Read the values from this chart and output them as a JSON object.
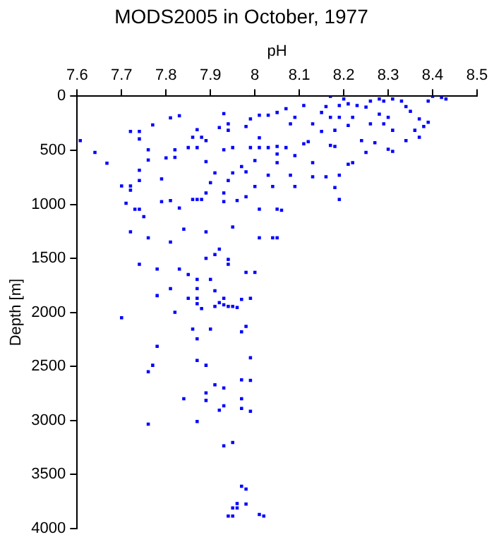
{
  "chart_data": {
    "type": "scatter",
    "title": "MODS2005 in October, 1977",
    "xlabel": "pH",
    "ylabel": "Depth [m]",
    "x": [
      7.607,
      7.64,
      7.667,
      7.72,
      7.74,
      7.74,
      7.77,
      7.81,
      7.83,
      7.76,
      7.76,
      7.8,
      7.82,
      7.82,
      7.85,
      7.87,
      7.86,
      7.88,
      7.87,
      7.89,
      7.89,
      7.93,
      7.92,
      7.94,
      7.94,
      7.93,
      7.95,
      7.98,
      7.99,
      8.01,
      7.99,
      8.01,
      8.01,
      8.03,
      8.05,
      8.05,
      8.05,
      8.07,
      8.09,
      8.08,
      8.03,
      8.05,
      8.07,
      8.09,
      8.11,
      8.12,
      8.13,
      8.13,
      8.11,
      8.15,
      8.16,
      8.17,
      8.17,
      8.15,
      8.17,
      8.18,
      8.18,
      8.19,
      8.2,
      8.21,
      8.22,
      8.21,
      8.22,
      8.23,
      8.24,
      8.25,
      8.26,
      8.26,
      8.27,
      8.28,
      8.29,
      8.29,
      8.3,
      8.31,
      8.3,
      8.31,
      8.31,
      8.34,
      8.34,
      8.36,
      8.37,
      8.37,
      8.38,
      8.39,
      8.39,
      8.4,
      8.42,
      8.43,
      8.35,
      8.33,
      8.28,
      8.25,
      8.21,
      8.19,
      7.7,
      7.72,
      7.72,
      7.74,
      7.74,
      7.79,
      7.71,
      7.73,
      7.74,
      7.75,
      7.79,
      7.81,
      7.83,
      7.86,
      7.87,
      7.88,
      7.89,
      7.9,
      7.91,
      7.93,
      7.93,
      7.94,
      7.95,
      7.96,
      7.97,
      7.98,
      7.98,
      8.0,
      8.0,
      8.01,
      8.03,
      8.04,
      8.05,
      8.06,
      8.08,
      8.09,
      8.13,
      8.16,
      8.18,
      8.19,
      8.19,
      7.72,
      7.76,
      7.81,
      7.84,
      7.89,
      7.95,
      8.01,
      8.04,
      8.05,
      7.74,
      7.78,
      7.83,
      7.85,
      7.87,
      7.9,
      7.89,
      7.91,
      7.92,
      7.94,
      7.94,
      7.98,
      8.0,
      7.81,
      7.78,
      7.85,
      7.87,
      7.87,
      7.87,
      7.88,
      7.91,
      7.91,
      7.92,
      7.93,
      7.93,
      7.94,
      7.95,
      7.96,
      7.97,
      7.99,
      7.82,
      7.7,
      7.86,
      7.9,
      7.97,
      7.98,
      7.87,
      7.78,
      7.87,
      7.89,
      7.99,
      7.77,
      7.76,
      7.97,
      7.99,
      7.91,
      7.93,
      7.89,
      7.84,
      7.97,
      7.89,
      7.92,
      7.93,
      7.97,
      7.99,
      7.76,
      7.87,
      7.93,
      7.95,
      7.97,
      7.98,
      7.98,
      7.96,
      7.95,
      7.96,
      7.94,
      7.95,
      8.01,
      8.02
    ],
    "values": [
      410,
      520,
      620,
      325,
      325,
      395,
      265,
      200,
      180,
      495,
      590,
      570,
      495,
      565,
      475,
      310,
      380,
      380,
      475,
      410,
      605,
      160,
      290,
      255,
      315,
      495,
      475,
      280,
      210,
      175,
      475,
      385,
      475,
      475,
      465,
      535,
      615,
      475,
      550,
      255,
      175,
      150,
      115,
      195,
      440,
      420,
      255,
      615,
      85,
      150,
      95,
      0,
      195,
      325,
      455,
      315,
      465,
      195,
      25,
      270,
      195,
      630,
      615,
      85,
      410,
      520,
      255,
      45,
      430,
      165,
      255,
      45,
      195,
      315,
      490,
      510,
      25,
      410,
      95,
      315,
      380,
      210,
      280,
      240,
      45,
      0,
      10,
      25,
      140,
      45,
      25,
      100,
      70,
      85,
      830,
      830,
      870,
      685,
      780,
      765,
      990,
      1045,
      1045,
      1115,
      975,
      965,
      1035,
      955,
      955,
      955,
      895,
      800,
      710,
      895,
      975,
      780,
      710,
      965,
      650,
      700,
      930,
      595,
      835,
      1045,
      730,
      835,
      1045,
      1055,
      730,
      835,
      745,
      745,
      845,
      730,
      955,
      1255,
      1310,
      1350,
      1230,
      1255,
      1210,
      1310,
      1310,
      1310,
      1555,
      1600,
      1600,
      1650,
      1695,
      1695,
      1500,
      1465,
      1415,
      1510,
      1555,
      1630,
      1630,
      1780,
      1845,
      1870,
      1780,
      1870,
      1920,
      1965,
      1800,
      1945,
      1910,
      1870,
      1930,
      1945,
      1945,
      1955,
      1880,
      1870,
      2000,
      2050,
      2155,
      2155,
      2180,
      2130,
      2245,
      2315,
      2445,
      2490,
      2420,
      2490,
      2550,
      2625,
      2630,
      2670,
      2700,
      2745,
      2800,
      2800,
      2815,
      2905,
      2865,
      2890,
      2915,
      3035,
      3010,
      3235,
      3205,
      3610,
      3635,
      3775,
      3770,
      3810,
      3810,
      3885,
      3885,
      3870,
      3885
    ],
    "color": "#0000ff",
    "marker": "square",
    "xlim": [
      7.6,
      8.5
    ],
    "xticks": [
      7.6,
      7.7,
      7.8,
      7.9,
      8,
      8.1,
      8.2,
      8.3,
      8.4,
      8.5
    ],
    "ylim": [
      4000,
      0
    ],
    "yticks": [
      0,
      500,
      1000,
      1500,
      2000,
      2500,
      3000,
      3500,
      4000
    ],
    "grid": false
  }
}
